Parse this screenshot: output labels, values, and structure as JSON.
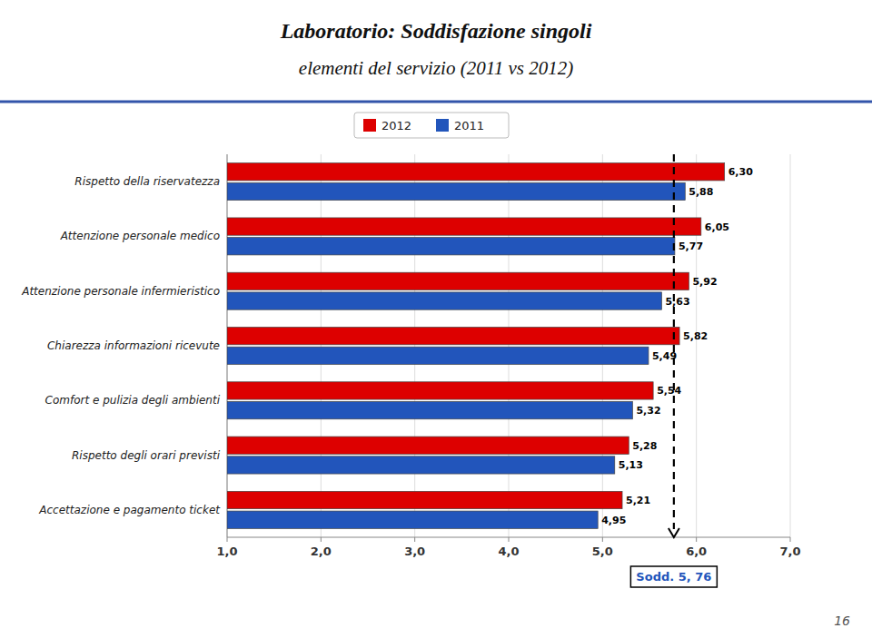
{
  "chart_data": {
    "type": "bar",
    "orientation": "horizontal",
    "title": "Laboratorio: Soddisfazione singoli",
    "subtitle": "elementi del servizio (2011 vs 2012)",
    "categories": [
      "Rispetto della riservatezza",
      "Attenzione personale medico",
      "Attenzione personale infermieristico",
      "Chiarezza informazioni ricevute",
      "Comfort e pulizia degli ambienti",
      "Rispetto degli orari previsti",
      "Accettazione e pagamento ticket"
    ],
    "series": [
      {
        "name": "2012",
        "color": "#dd0000",
        "values": [
          6.3,
          6.05,
          5.92,
          5.82,
          5.54,
          5.28,
          5.21
        ],
        "value_labels": [
          "6,30",
          "6,05",
          "5,92",
          "5,82",
          "5,54",
          "5,28",
          "5,21"
        ]
      },
      {
        "name": "2011",
        "color": "#2255bb",
        "values": [
          5.88,
          5.77,
          5.63,
          5.49,
          5.32,
          5.13,
          4.95
        ],
        "value_labels": [
          "5,88",
          "5,77",
          "5,63",
          "5,49",
          "5,32",
          "5,13",
          "4,95"
        ]
      }
    ],
    "xlim": [
      1.0,
      7.0
    ],
    "xticks": [
      {
        "value": 1.0,
        "label": "1,0"
      },
      {
        "value": 2.0,
        "label": "2,0"
      },
      {
        "value": 3.0,
        "label": "3,0"
      },
      {
        "value": 4.0,
        "label": "4,0"
      },
      {
        "value": 5.0,
        "label": "5,0"
      },
      {
        "value": 6.0,
        "label": "6,0"
      },
      {
        "value": 7.0,
        "label": "7,0"
      }
    ],
    "grid": true,
    "legend": "top",
    "data_labels": true,
    "annotations": [
      {
        "x": 5.76,
        "text": "Sodd. 5, 76"
      },
      {
        "text": "16"
      }
    ]
  }
}
